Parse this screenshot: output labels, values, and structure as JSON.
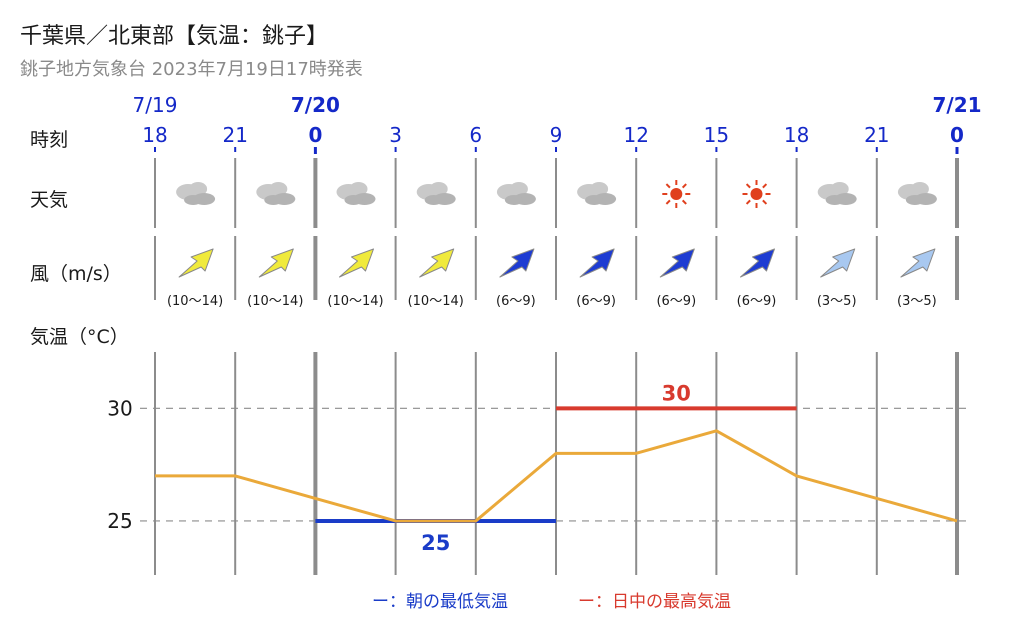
{
  "header": {
    "title": "千葉県／北東部【気温：銚子】",
    "subtitle": "銚子地方気象台 2023年7月19日17時発表"
  },
  "row_labels": {
    "time": "時刻",
    "weather": "天気",
    "wind": "風（m/s）",
    "temperature": "気温（°C）"
  },
  "colors": {
    "date_blue": "#1428c8",
    "min_line": "#1a3cc8",
    "max_line": "#d83a2e",
    "temp_line": "#eaa93a",
    "grid": "#8c8c8c",
    "sun": "#e0401e",
    "cloud": "#bdbdbd"
  },
  "chart_data": {
    "type": "line",
    "dates": [
      {
        "label": "7/19",
        "at": "18"
      },
      {
        "label": "7/20",
        "at": "0"
      },
      {
        "label": "7/21",
        "at": "0"
      }
    ],
    "x": [
      "18",
      "21",
      "0",
      "3",
      "6",
      "9",
      "12",
      "15",
      "18",
      "21",
      "0"
    ],
    "weather": [
      "cloudy-icon",
      "cloudy-icon",
      "cloudy-icon",
      "cloudy-icon",
      "cloudy-icon",
      "cloudy-icon",
      "sunny-icon",
      "sunny-icon",
      "cloudy-icon",
      "cloudy-icon"
    ],
    "wind": [
      {
        "range": "(10〜14)",
        "direction": "SW",
        "level": "strong"
      },
      {
        "range": "(10〜14)",
        "direction": "SW",
        "level": "strong"
      },
      {
        "range": "(10〜14)",
        "direction": "SW",
        "level": "strong"
      },
      {
        "range": "(10〜14)",
        "direction": "SW",
        "level": "strong"
      },
      {
        "range": "(6〜9)",
        "direction": "SW",
        "level": "moderate"
      },
      {
        "range": "(6〜9)",
        "direction": "SW",
        "level": "moderate"
      },
      {
        "range": "(6〜9)",
        "direction": "SW",
        "level": "moderate"
      },
      {
        "range": "(6〜9)",
        "direction": "SW",
        "level": "moderate"
      },
      {
        "range": "(3〜5)",
        "direction": "SW",
        "level": "light"
      },
      {
        "range": "(3〜5)",
        "direction": "SW",
        "level": "light"
      }
    ],
    "wind_colors": {
      "strong": "#f0ea3c",
      "moderate": "#1e3cd2",
      "light": "#a8c8f0"
    },
    "series": [
      {
        "values": [
          27,
          27,
          26,
          25,
          25,
          28,
          28,
          29,
          27,
          26,
          25
        ]
      }
    ],
    "min_temp": {
      "value": 25,
      "label": "25",
      "from": "0",
      "to": "9"
    },
    "max_temp": {
      "value": 30,
      "label": "30",
      "from": "9",
      "to": "18"
    },
    "yticks": [
      30,
      25
    ],
    "ylim": [
      22.6,
      32.5
    ],
    "grid": true,
    "legend": [
      {
        "label": "ー：朝の最低気温",
        "color": "#1a3cc8"
      },
      {
        "label": "ー：日中の最高気温",
        "color": "#d83a2e"
      }
    ]
  }
}
